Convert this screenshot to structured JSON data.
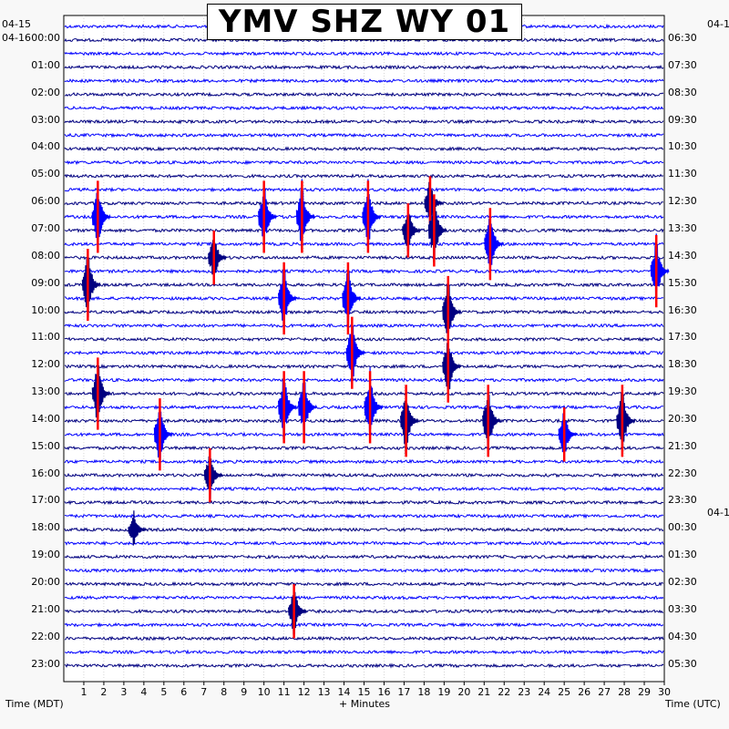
{
  "chart_data": {
    "type": "heatmap",
    "title": "YMV SHZ WY 01",
    "xlabel": "+ Minutes",
    "ylabel_left": "Time (MDT)",
    "ylabel_right": "Time (UTC)",
    "x_ticks": [
      "1",
      "2",
      "3",
      "4",
      "5",
      "6",
      "7",
      "8",
      "9",
      "10",
      "11",
      "12",
      "13",
      "14",
      "15",
      "16",
      "17",
      "18",
      "19",
      "20",
      "21",
      "22",
      "23",
      "24",
      "25",
      "26",
      "27",
      "28",
      "29",
      "30"
    ],
    "xlim": [
      0,
      30
    ],
    "date_labels": {
      "left_top_prev": "04-15",
      "left_top": "04-16",
      "right_top": "04-1",
      "right_mid": "04-1"
    },
    "left_hours": [
      "00:00",
      "01:00",
      "02:00",
      "03:00",
      "04:00",
      "05:00",
      "06:00",
      "07:00",
      "08:00",
      "09:00",
      "10:00",
      "11:00",
      "12:00",
      "13:00",
      "14:00",
      "15:00",
      "16:00",
      "17:00",
      "18:00",
      "19:00",
      "20:00",
      "21:00",
      "22:00",
      "23:00"
    ],
    "right_hours": [
      "06:30",
      "07:30",
      "08:30",
      "09:30",
      "10:30",
      "11:30",
      "12:30",
      "13:30",
      "14:30",
      "15:30",
      "16:30",
      "17:30",
      "18:30",
      "19:30",
      "20:30",
      "21:30",
      "22:30",
      "23:30",
      "00:30",
      "01:30",
      "02:30",
      "03:30",
      "04:30",
      "05:30"
    ],
    "trace_colors": [
      "#0000ff",
      "#000080"
    ],
    "clip_color": "#ff0000",
    "traces_per_hour": 2,
    "minutes_per_trace": 30,
    "events": [
      {
        "hour": 6.5,
        "minute": 18.3,
        "amp": 3
      },
      {
        "hour": 7.0,
        "minute": 1.7,
        "amp": 4
      },
      {
        "hour": 7.0,
        "minute": 10.0,
        "amp": 4
      },
      {
        "hour": 7.0,
        "minute": 11.9,
        "amp": 4
      },
      {
        "hour": 7.0,
        "minute": 15.2,
        "amp": 4
      },
      {
        "hour": 7.5,
        "minute": 18.5,
        "amp": 4
      },
      {
        "hour": 7.5,
        "minute": 17.2,
        "amp": 3
      },
      {
        "hour": 8.0,
        "minute": 21.3,
        "amp": 4
      },
      {
        "hour": 8.5,
        "minute": 7.5,
        "amp": 3
      },
      {
        "hour": 9.0,
        "minute": 29.6,
        "amp": 4
      },
      {
        "hour": 9.5,
        "minute": 1.2,
        "amp": 4
      },
      {
        "hour": 10.0,
        "minute": 11.0,
        "amp": 4
      },
      {
        "hour": 10.0,
        "minute": 14.2,
        "amp": 4
      },
      {
        "hour": 10.5,
        "minute": 19.2,
        "amp": 4
      },
      {
        "hour": 12.0,
        "minute": 14.4,
        "amp": 4
      },
      {
        "hour": 12.5,
        "minute": 19.2,
        "amp": 4
      },
      {
        "hour": 13.5,
        "minute": 1.7,
        "amp": 4
      },
      {
        "hour": 14.0,
        "minute": 11.0,
        "amp": 4
      },
      {
        "hour": 14.0,
        "minute": 12.0,
        "amp": 4
      },
      {
        "hour": 14.0,
        "minute": 15.3,
        "amp": 4
      },
      {
        "hour": 14.5,
        "minute": 17.1,
        "amp": 4
      },
      {
        "hour": 14.5,
        "minute": 21.2,
        "amp": 4
      },
      {
        "hour": 14.5,
        "minute": 27.9,
        "amp": 4
      },
      {
        "hour": 15.0,
        "minute": 4.8,
        "amp": 4
      },
      {
        "hour": 15.0,
        "minute": 25.0,
        "amp": 3
      },
      {
        "hour": 16.5,
        "minute": 7.3,
        "amp": 3
      },
      {
        "hour": 18.5,
        "minute": 3.5,
        "amp": 2
      },
      {
        "hour": 21.5,
        "minute": 11.5,
        "amp": 3
      }
    ]
  }
}
